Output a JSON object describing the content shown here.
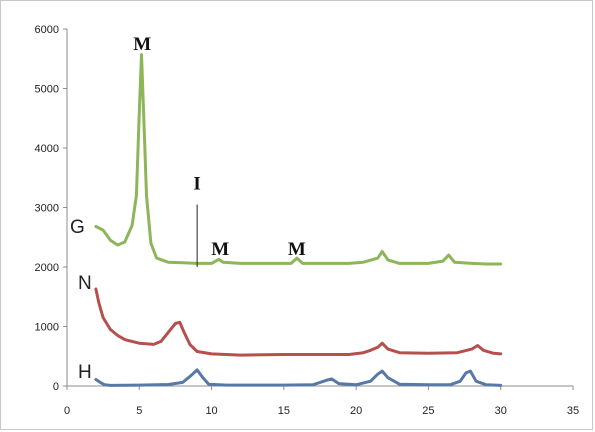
{
  "chart_data": {
    "type": "line",
    "xlim": [
      0,
      35
    ],
    "ylim": [
      0,
      6000
    ],
    "x_ticks": [
      0,
      5,
      10,
      15,
      20,
      25,
      30,
      35
    ],
    "y_ticks": [
      0,
      1000,
      2000,
      3000,
      4000,
      5000,
      6000
    ],
    "grid": false,
    "legend": "none",
    "series": [
      {
        "name": "G",
        "color": "#8DB55A",
        "points": [
          [
            2,
            2680
          ],
          [
            2.5,
            2620
          ],
          [
            3,
            2450
          ],
          [
            3.5,
            2370
          ],
          [
            4,
            2420
          ],
          [
            4.5,
            2700
          ],
          [
            4.8,
            3200
          ],
          [
            5,
            4600
          ],
          [
            5.15,
            5570
          ],
          [
            5.3,
            4600
          ],
          [
            5.5,
            3200
          ],
          [
            5.8,
            2400
          ],
          [
            6.2,
            2150
          ],
          [
            7,
            2080
          ],
          [
            8,
            2070
          ],
          [
            9,
            2060
          ],
          [
            10,
            2060
          ],
          [
            10.5,
            2130
          ],
          [
            10.8,
            2080
          ],
          [
            12,
            2060
          ],
          [
            14,
            2060
          ],
          [
            15.5,
            2060
          ],
          [
            15.9,
            2150
          ],
          [
            16.3,
            2060
          ],
          [
            18,
            2060
          ],
          [
            19.5,
            2060
          ],
          [
            20.5,
            2080
          ],
          [
            21.5,
            2150
          ],
          [
            21.8,
            2260
          ],
          [
            22.2,
            2120
          ],
          [
            23,
            2060
          ],
          [
            25,
            2060
          ],
          [
            26,
            2100
          ],
          [
            26.4,
            2200
          ],
          [
            26.8,
            2080
          ],
          [
            28,
            2060
          ],
          [
            29,
            2050
          ],
          [
            30,
            2050
          ]
        ]
      },
      {
        "name": "N",
        "color": "#B5504D",
        "points": [
          [
            2,
            1630
          ],
          [
            2.2,
            1400
          ],
          [
            2.5,
            1150
          ],
          [
            3,
            950
          ],
          [
            3.5,
            850
          ],
          [
            4,
            780
          ],
          [
            5,
            720
          ],
          [
            6,
            700
          ],
          [
            6.5,
            750
          ],
          [
            7,
            900
          ],
          [
            7.5,
            1050
          ],
          [
            7.8,
            1070
          ],
          [
            8.1,
            900
          ],
          [
            8.5,
            700
          ],
          [
            9,
            580
          ],
          [
            10,
            540
          ],
          [
            12,
            520
          ],
          [
            15,
            530
          ],
          [
            18,
            530
          ],
          [
            19.5,
            530
          ],
          [
            20.5,
            560
          ],
          [
            21,
            600
          ],
          [
            21.5,
            650
          ],
          [
            21.8,
            720
          ],
          [
            22.2,
            620
          ],
          [
            23,
            560
          ],
          [
            25,
            550
          ],
          [
            27,
            560
          ],
          [
            28,
            620
          ],
          [
            28.4,
            680
          ],
          [
            28.8,
            600
          ],
          [
            29.5,
            550
          ],
          [
            30,
            540
          ]
        ]
      },
      {
        "name": "H",
        "color": "#5878A5",
        "points": [
          [
            2,
            110
          ],
          [
            2.3,
            60
          ],
          [
            2.6,
            20
          ],
          [
            3,
            10
          ],
          [
            5,
            15
          ],
          [
            7,
            25
          ],
          [
            8,
            60
          ],
          [
            8.6,
            180
          ],
          [
            9,
            270
          ],
          [
            9.4,
            140
          ],
          [
            9.8,
            30
          ],
          [
            11,
            15
          ],
          [
            15,
            15
          ],
          [
            17,
            20
          ],
          [
            18,
            100
          ],
          [
            18.3,
            120
          ],
          [
            18.8,
            40
          ],
          [
            20,
            20
          ],
          [
            21,
            80
          ],
          [
            21.5,
            200
          ],
          [
            21.8,
            250
          ],
          [
            22.2,
            140
          ],
          [
            23,
            30
          ],
          [
            25,
            20
          ],
          [
            26.5,
            20
          ],
          [
            27.2,
            80
          ],
          [
            27.6,
            220
          ],
          [
            27.9,
            250
          ],
          [
            28.3,
            80
          ],
          [
            29,
            20
          ],
          [
            30,
            10
          ]
        ]
      }
    ],
    "curve_labels": [
      "G",
      "N",
      "H"
    ],
    "annotations": [
      {
        "text": "M",
        "x": 5.2,
        "y": 5650
      },
      {
        "text": "I",
        "x": 9.0,
        "y": 3300
      },
      {
        "text": "M",
        "x": 10.6,
        "y": 2200
      },
      {
        "text": "M",
        "x": 15.9,
        "y": 2200
      }
    ],
    "marker_line": {
      "x": 9.0,
      "y_from": 2000,
      "y_to": 3050
    }
  }
}
